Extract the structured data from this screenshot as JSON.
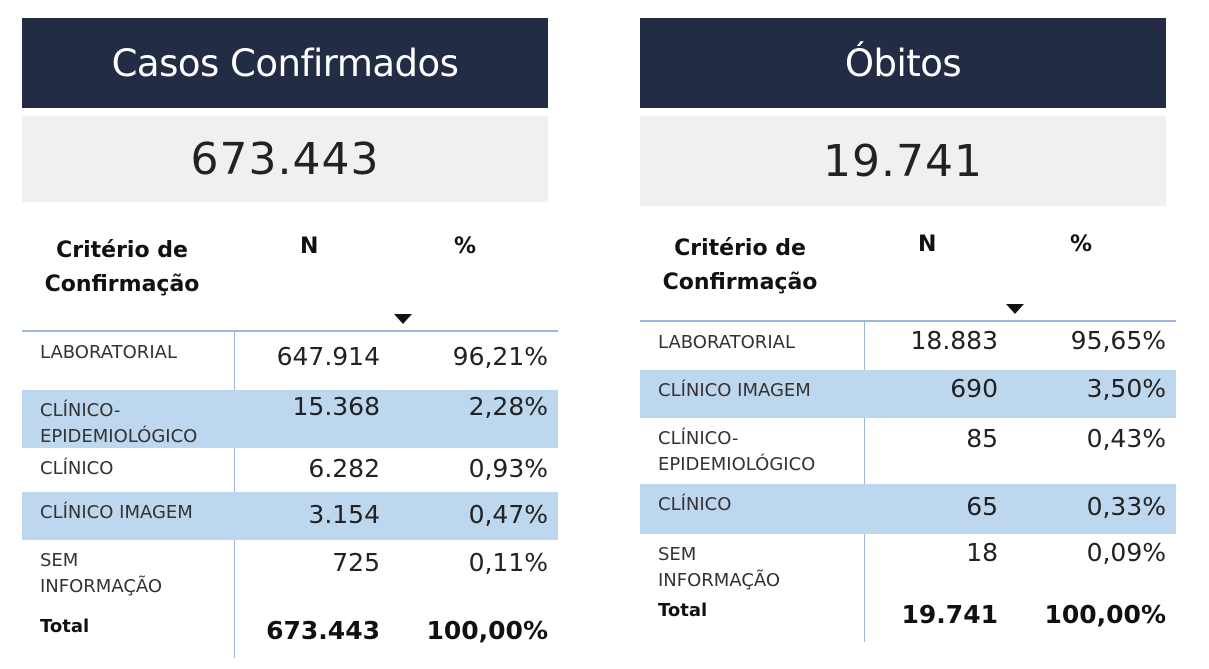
{
  "left": {
    "title": "Casos Confirmados",
    "total_big": "673.443",
    "header": {
      "label": "Critério de Confirmação",
      "n": "N",
      "pct": "%"
    },
    "rows": [
      {
        "label": "LABORATORIAL",
        "n": "647.914",
        "pct": "96,21%"
      },
      {
        "label": "CLÍNICO-\nEPIDEMIOLÓGICO",
        "n": "15.368",
        "pct": "2,28%"
      },
      {
        "label": "CLÍNICO",
        "n": "6.282",
        "pct": "0,93%"
      },
      {
        "label": "CLÍNICO IMAGEM",
        "n": "3.154",
        "pct": "0,47%"
      },
      {
        "label": "SEM\nINFORMAÇÃO",
        "n": "725",
        "pct": "0,11%"
      }
    ],
    "total": {
      "label": "Total",
      "n": "673.443",
      "pct": "100,00%"
    }
  },
  "right": {
    "title": "Óbitos",
    "total_big": "19.741",
    "header": {
      "label": "Critério de Confirmação",
      "n": "N",
      "pct": "%"
    },
    "rows": [
      {
        "label": "LABORATORIAL",
        "n": "18.883",
        "pct": "95,65%"
      },
      {
        "label": "CLÍNICO IMAGEM",
        "n": "690",
        "pct": "3,50%"
      },
      {
        "label": "CLÍNICO-\nEPIDEMIOLÓGICO",
        "n": "85",
        "pct": "0,43%"
      },
      {
        "label": "CLÍNICO",
        "n": "65",
        "pct": "0,33%"
      },
      {
        "label": "SEM\nINFORMAÇÃO",
        "n": "18",
        "pct": "0,09%"
      }
    ],
    "total": {
      "label": "Total",
      "n": "19.741",
      "pct": "100,00%"
    }
  },
  "colors": {
    "title_bg": "#232c45",
    "number_bg": "#f0f0f0",
    "alt_row": "#bdd7ee",
    "rule": "#9db5d8"
  }
}
